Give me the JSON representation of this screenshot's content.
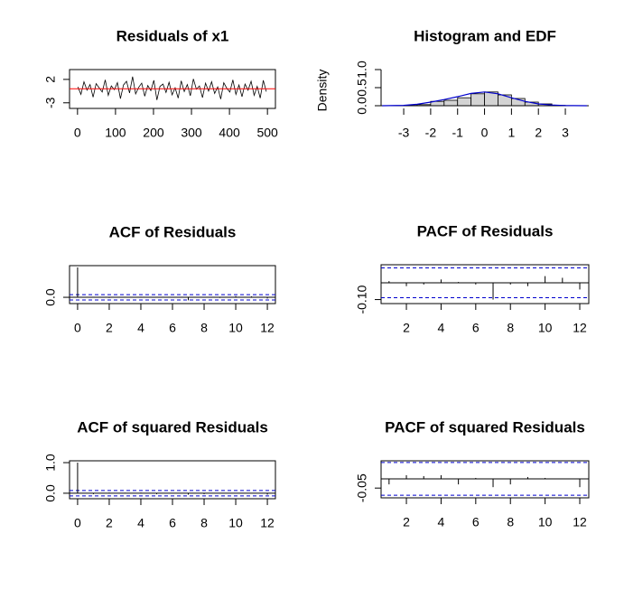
{
  "chart_data": [
    {
      "type": "line",
      "title": "Residuals of x1",
      "color": "#000000",
      "x": [
        1,
        9,
        17,
        25,
        33,
        41,
        49,
        57,
        65,
        73,
        81,
        89,
        97,
        105,
        113,
        121,
        129,
        137,
        145,
        153,
        161,
        169,
        177,
        185,
        193,
        201,
        209,
        217,
        225,
        233,
        241,
        249,
        257,
        265,
        273,
        281,
        289,
        297,
        305,
        313,
        321,
        329,
        337,
        345,
        353,
        361,
        369,
        377,
        385,
        393,
        401,
        409,
        417,
        425,
        433,
        441,
        449,
        457,
        465,
        473,
        481,
        489,
        497
      ],
      "values": [
        0.4,
        -1.2,
        1.5,
        -0.3,
        0.9,
        -1.8,
        1.1,
        0.2,
        -0.7,
        1.9,
        -1.4,
        0.6,
        -0.2,
        1.3,
        -2.1,
        0.8,
        1.6,
        -0.9,
        2.6,
        -1.1,
        0.3,
        1.2,
        -1.6,
        0.7,
        -0.4,
        1.8,
        -2.4,
        0.5,
        1.0,
        -0.8,
        1.4,
        -1.3,
        0.2,
        -2.0,
        1.7,
        -0.6,
        0.9,
        -1.5,
        2.1,
        -0.1,
        0.6,
        -1.9,
        1.2,
        -0.5,
        1.5,
        -1.0,
        0.4,
        -2.2,
        1.3,
        0.1,
        -0.7,
        1.9,
        -1.2,
        0.8,
        -1.7,
        1.0,
        -0.3,
        1.6,
        -1.4,
        0.5,
        -2.0,
        1.8,
        -0.6
      ],
      "hline": 0,
      "hline_color": "#ff0000",
      "xlim": [
        -21,
        521
      ],
      "ylim": [
        -4.2,
        4.1
      ],
      "xticks": [
        0,
        100,
        200,
        300,
        400,
        500
      ],
      "yticks": [
        -3,
        2
      ]
    },
    {
      "type": "histogram",
      "title": "Histogram and EDF",
      "ylabel": "Density",
      "color": "#d3d3d3",
      "bins": [
        -3,
        -2.5,
        -2,
        -1.5,
        -1,
        -0.5,
        0,
        0.5,
        1,
        1.5,
        2,
        2.5,
        3
      ],
      "values": [
        0.01,
        0.03,
        0.12,
        0.15,
        0.22,
        0.33,
        0.38,
        0.3,
        0.2,
        0.1,
        0.05,
        0.01
      ],
      "density_x": [
        -3.8,
        -3,
        -2.5,
        -2,
        -1.5,
        -1,
        -0.5,
        0,
        0.5,
        1,
        1.5,
        2,
        2.5,
        3,
        3.8
      ],
      "density_values": [
        0,
        0.01,
        0.04,
        0.1,
        0.17,
        0.25,
        0.34,
        0.38,
        0.33,
        0.22,
        0.12,
        0.05,
        0.02,
        0.005,
        0
      ],
      "density_color": "#0000cd",
      "xlim": [
        -3.84,
        3.87
      ],
      "ylim": [
        0,
        1
      ],
      "xticks": [
        -3,
        -2,
        -1,
        0,
        1,
        2,
        3
      ],
      "yticks": [
        {
          "value": 0,
          "label": "0.0"
        },
        {
          "value": 0.5,
          "label": "0.5"
        },
        {
          "value": 1,
          "label": "1.0"
        }
      ]
    },
    {
      "type": "acf",
      "title": "ACF of Residuals",
      "color": "#000000",
      "x": [
        0,
        1,
        2,
        3,
        4,
        5,
        6,
        7,
        8,
        9,
        10,
        11,
        12
      ],
      "values": [
        1,
        0.01,
        -0.02,
        -0.01,
        0.02,
        0.005,
        -0.01,
        -0.1,
        -0.01,
        -0.02,
        0.04,
        0.03,
        -0.04
      ],
      "conf_band": 0.089,
      "band_color": "#0000cd",
      "xlim": [
        -0.51,
        12.51
      ],
      "ylim": [
        -0.21,
        1.06
      ],
      "xticks": [
        0,
        2,
        4,
        6,
        8,
        10,
        12
      ],
      "yticks": [
        {
          "value": 0,
          "label": "0.0"
        }
      ]
    },
    {
      "type": "acf",
      "title": "PACF of Residuals",
      "color": "#000000",
      "x": [
        1,
        2,
        3,
        4,
        5,
        6,
        7,
        8,
        9,
        10,
        11,
        12
      ],
      "values": [
        0.01,
        -0.02,
        -0.01,
        0.02,
        0.005,
        -0.01,
        -0.1,
        -0.01,
        -0.02,
        0.04,
        0.03,
        -0.04
      ],
      "conf_band": 0.089,
      "band_color": "#0000cd",
      "xlim": [
        0.54,
        12.52
      ],
      "ylim": [
        -0.124,
        0.108
      ],
      "xticks": [
        2,
        4,
        6,
        8,
        10,
        12
      ],
      "yticks": [
        {
          "value": -0.1,
          "label": "-0.10"
        }
      ]
    },
    {
      "type": "acf",
      "title": "ACF of squared Residuals",
      "color": "#000000",
      "x": [
        0,
        1,
        2,
        3,
        4,
        5,
        6,
        7,
        8,
        9,
        10,
        11,
        12
      ],
      "values": [
        1,
        -0.03,
        0.02,
        0.015,
        0.02,
        -0.03,
        0.005,
        -0.045,
        -0.03,
        0.01,
        0.005,
        0.002,
        -0.045
      ],
      "conf_band": 0.089,
      "band_color": "#0000cd",
      "xlim": [
        -0.51,
        12.51
      ],
      "ylim": [
        -0.18,
        1.06
      ],
      "xticks": [
        0,
        2,
        4,
        6,
        8,
        10,
        12
      ],
      "yticks": [
        {
          "value": 0,
          "label": "0.0"
        },
        {
          "value": 1,
          "label": "1.0"
        }
      ]
    },
    {
      "type": "acf",
      "title": "PACF of squared Residuals",
      "color": "#000000",
      "x": [
        1,
        2,
        3,
        4,
        5,
        6,
        7,
        8,
        9,
        10,
        11,
        12
      ],
      "values": [
        -0.03,
        0.02,
        0.015,
        0.02,
        -0.03,
        0.005,
        -0.045,
        -0.03,
        0.01,
        0.005,
        0.002,
        -0.045
      ],
      "conf_band": 0.089,
      "band_color": "#0000cd",
      "xlim": [
        0.54,
        12.52
      ],
      "ylim": [
        -0.103,
        0.098
      ],
      "xticks": [
        2,
        4,
        6,
        8,
        10,
        12
      ],
      "yticks": [
        {
          "value": -0.05,
          "label": "-0.05"
        }
      ]
    }
  ]
}
